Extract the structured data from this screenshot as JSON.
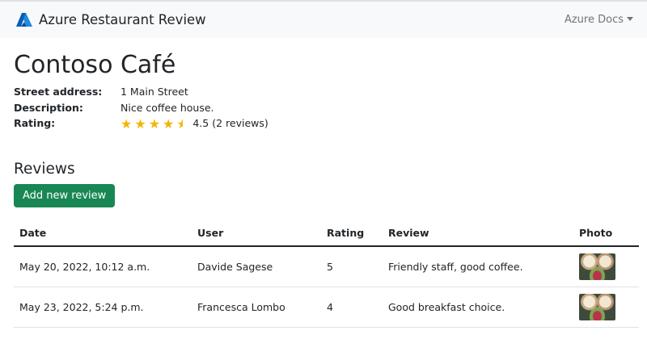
{
  "navbar": {
    "brand": "Azure Restaurant Review",
    "docs_menu": "Azure Docs"
  },
  "restaurant": {
    "name": "Contoso Café",
    "labels": {
      "address": "Street address:",
      "description": "Description:",
      "rating": "Rating:"
    },
    "address": "1 Main Street",
    "description": "Nice coffee house.",
    "rating": 4.5,
    "rating_text": "4.5 (2 reviews)",
    "star_color": "#f1b600"
  },
  "reviews": {
    "heading": "Reviews",
    "add_button": "Add new review",
    "button_color": "#198754",
    "columns": [
      "Date",
      "User",
      "Rating",
      "Review",
      "Photo"
    ],
    "rows": [
      {
        "date": "May 20, 2022, 10:12 a.m.",
        "user": "Davide Sagese",
        "rating": "5",
        "review": "Friendly staff, good coffee."
      },
      {
        "date": "May 23, 2022, 5:24 p.m.",
        "user": "Francesca Lombo",
        "rating": "4",
        "review": "Good breakfast choice."
      }
    ]
  }
}
